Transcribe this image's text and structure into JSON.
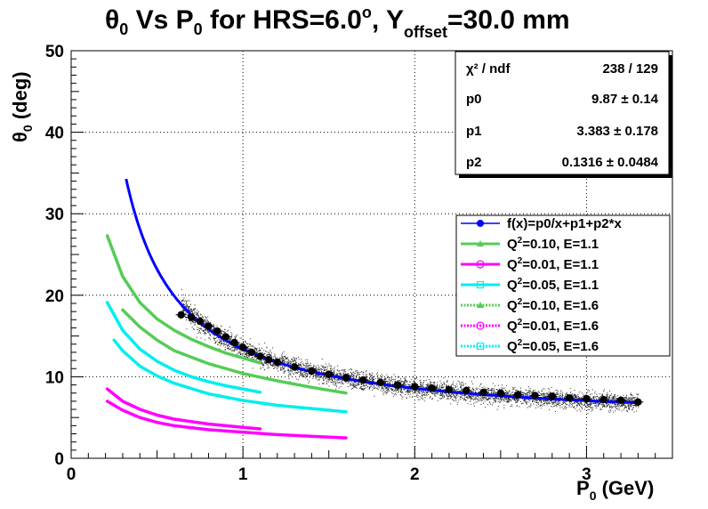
{
  "title_parts": {
    "theta": "θ",
    "sub0": "0",
    "mid": " Vs P",
    "sub1": "0",
    "for": " for HRS=6.0",
    "deg": "o",
    "comma": ", Y",
    "offset": "offset",
    "tail": "=30.0 mm"
  },
  "xlabel_parts": {
    "p": "P",
    "sub": "0",
    "unit": " (GeV)"
  },
  "ylabel_parts": {
    "theta": "θ",
    "sub": "0",
    "unit": " (deg)"
  },
  "stats": {
    "rows": [
      {
        "label": "χ² / ndf",
        "value": "238 / 129"
      },
      {
        "label": "p0",
        "value": "9.87 ± 0.14"
      },
      {
        "label": "p1",
        "value": "3.383 ± 0.178"
      },
      {
        "label": "p2",
        "value": "0.1316 ± 0.0484"
      }
    ]
  },
  "legend": {
    "entries": [
      {
        "text": "f(x)=p0/x+p1+p2*x",
        "color": "#0000ff",
        "marker": "circle",
        "style": "solid"
      },
      {
        "text_pre": "Q",
        "sup": "2",
        "text_post": "=0.10, E=1.1",
        "color": "#55cc55",
        "marker": "triangle",
        "style": "solid"
      },
      {
        "text_pre": "Q",
        "sup": "2",
        "text_post": "=0.01, E=1.1",
        "color": "#ff00ff",
        "marker": "open-circle",
        "style": "solid"
      },
      {
        "text_pre": "Q",
        "sup": "2",
        "text_post": "=0.05, E=1.1",
        "color": "#00eeee",
        "marker": "open-square",
        "style": "solid"
      },
      {
        "text_pre": "Q",
        "sup": "2",
        "text_post": "=0.10, E=1.6",
        "color": "#55cc55",
        "marker": "triangle",
        "style": "dashed"
      },
      {
        "text_pre": "Q",
        "sup": "2",
        "text_post": "=0.01, E=1.6",
        "color": "#ff00ff",
        "marker": "open-circle",
        "style": "dashed"
      },
      {
        "text_pre": "Q",
        "sup": "2",
        "text_post": "=0.05, E=1.6",
        "color": "#00eeee",
        "marker": "open-square",
        "style": "dashed"
      }
    ]
  },
  "chart_data": {
    "type": "scatter",
    "title": "θ0 Vs P0 for HRS=6.0 o, Yoffset=30.0 mm",
    "xlabel": "P0 (GeV)",
    "ylabel": "θ0 (deg)",
    "xlim": [
      0,
      3.5
    ],
    "ylim": [
      0,
      50
    ],
    "xticks": [
      0,
      1,
      2,
      3
    ],
    "yticks": [
      0,
      10,
      20,
      30,
      40,
      50
    ],
    "grid": true,
    "legend_position": "right",
    "fit": {
      "formula": "f(x)=p0/x+p1+p2*x",
      "p0": 9.87,
      "p1": 3.383,
      "p2": 0.1316,
      "x_range": [
        0.32,
        3.3
      ],
      "color": "#0000ff"
    },
    "series": [
      {
        "name": "Q2=0.10, E=1.1",
        "color": "#55cc55",
        "style": "solid",
        "x": [
          0.21,
          0.3,
          0.4,
          0.5,
          0.6,
          0.7,
          0.8,
          0.9,
          1.0,
          1.1
        ],
        "y": [
          27.3,
          22.3,
          19.1,
          17.1,
          15.7,
          14.6,
          13.7,
          12.9,
          12.3,
          11.7
        ]
      },
      {
        "name": "Q2=0.01, E=1.1",
        "color": "#ff00ff",
        "style": "solid",
        "x": [
          0.21,
          0.3,
          0.4,
          0.5,
          0.6,
          0.7,
          0.8,
          0.9,
          1.0,
          1.1
        ],
        "y": [
          8.5,
          7.0,
          6.0,
          5.3,
          4.8,
          4.5,
          4.2,
          4.0,
          3.8,
          3.6
        ]
      },
      {
        "name": "Q2=0.05, E=1.1",
        "color": "#00eeee",
        "style": "solid",
        "x": [
          0.21,
          0.3,
          0.4,
          0.5,
          0.6,
          0.7,
          0.8,
          0.9,
          1.0,
          1.1
        ],
        "y": [
          19.1,
          15.7,
          13.4,
          11.9,
          10.8,
          10.0,
          9.4,
          8.9,
          8.5,
          8.1
        ]
      },
      {
        "name": "Q2=0.10, E=1.6",
        "color": "#55cc55",
        "style": "dashed",
        "x": [
          0.3,
          0.4,
          0.5,
          0.6,
          0.8,
          1.0,
          1.2,
          1.4,
          1.6
        ],
        "y": [
          18.2,
          16.1,
          14.5,
          13.2,
          11.6,
          10.4,
          9.5,
          8.7,
          8.0
        ]
      },
      {
        "name": "Q2=0.01, E=1.6",
        "color": "#ff00ff",
        "style": "dashed",
        "x": [
          0.21,
          0.3,
          0.4,
          0.5,
          0.6,
          0.8,
          1.0,
          1.2,
          1.4,
          1.6
        ],
        "y": [
          7.0,
          5.9,
          5.0,
          4.4,
          4.0,
          3.5,
          3.2,
          2.9,
          2.7,
          2.5
        ]
      },
      {
        "name": "Q2=0.05, E=1.6",
        "color": "#00eeee",
        "style": "dashed",
        "x": [
          0.25,
          0.3,
          0.4,
          0.5,
          0.6,
          0.8,
          1.0,
          1.2,
          1.4,
          1.6
        ],
        "y": [
          14.5,
          13.2,
          11.3,
          10.1,
          9.2,
          7.9,
          7.1,
          6.5,
          6.1,
          5.7
        ]
      },
      {
        "name": "data",
        "color": "#000000",
        "style": "markers",
        "x": [
          0.64,
          0.7,
          0.75,
          0.8,
          0.85,
          0.9,
          0.95,
          1.0,
          1.05,
          1.1,
          1.15,
          1.2,
          1.3,
          1.4,
          1.5,
          1.6,
          1.7,
          1.8,
          1.9,
          2.0,
          2.1,
          2.2,
          2.3,
          2.4,
          2.5,
          2.6,
          2.7,
          2.8,
          2.9,
          3.0,
          3.1,
          3.2,
          3.3
        ],
        "y": [
          17.6,
          17.3,
          16.8,
          16.2,
          15.6,
          14.9,
          14.2,
          13.6,
          13.0,
          12.5,
          12.1,
          11.8,
          11.2,
          10.7,
          10.3,
          9.9,
          9.6,
          9.3,
          9.0,
          8.8,
          8.6,
          8.4,
          8.3,
          8.1,
          8.0,
          7.8,
          7.7,
          7.6,
          7.4,
          7.3,
          7.2,
          7.1,
          6.9
        ]
      }
    ]
  }
}
